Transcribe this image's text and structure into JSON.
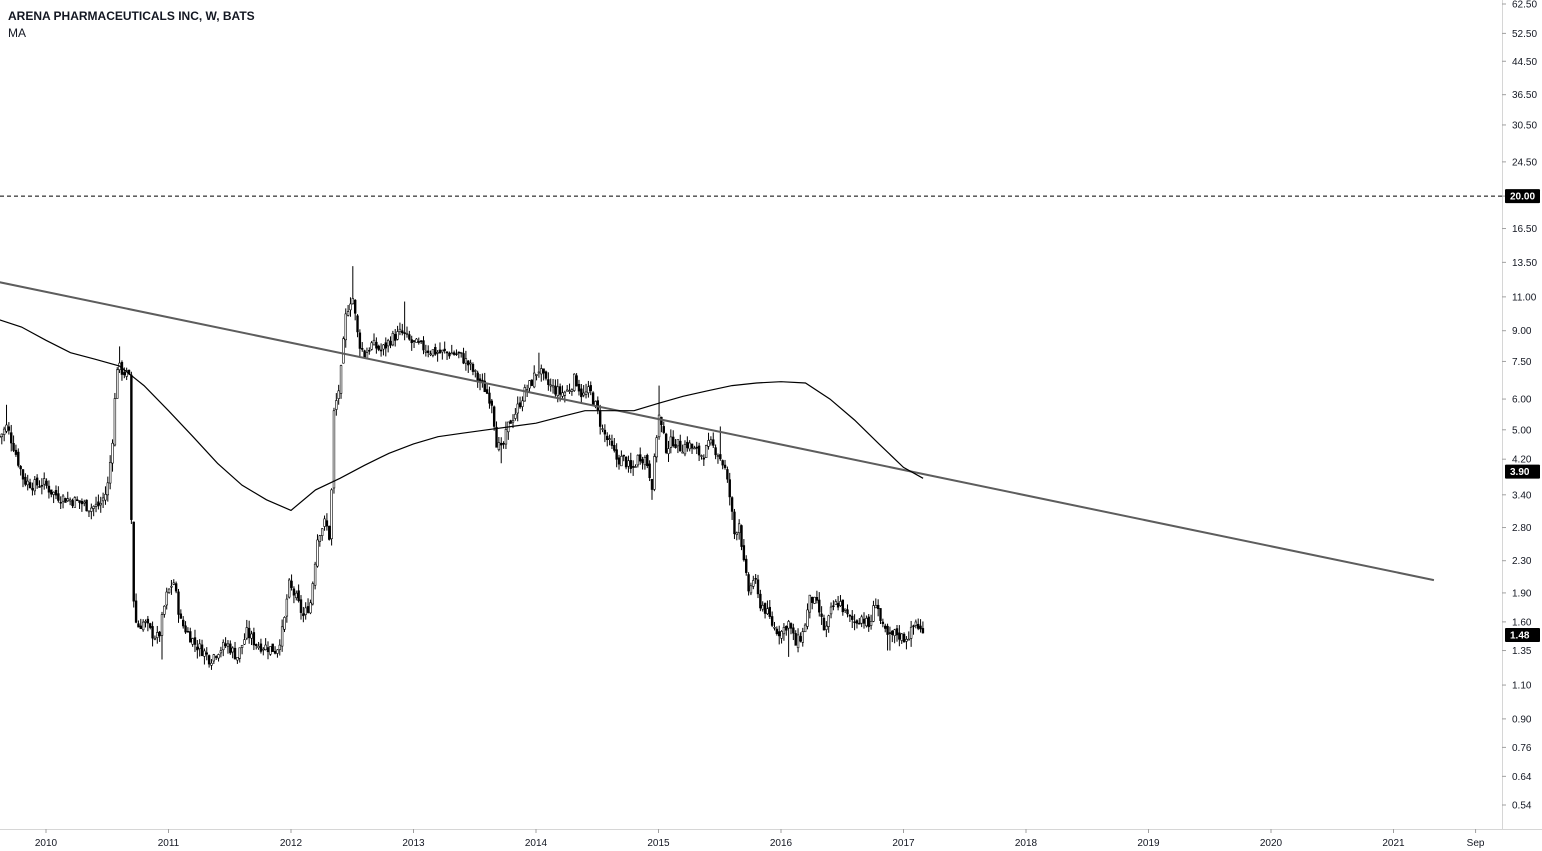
{
  "legend": {
    "symbol_line": "ARENA PHARMACEUTICALS INC, W, BATS",
    "indicator": "MA"
  },
  "colors": {
    "candles": "#000000",
    "ma": "#000000",
    "trendline": "#5d5d5d",
    "axis_text": "#131722",
    "badge_bg": "#000000",
    "badge_text": "#ffffff"
  },
  "chart_data": {
    "type": "candlestick",
    "scale": "log",
    "y_ticks": [
      "0.54",
      "0.64",
      "0.76",
      "0.90",
      "1.10",
      "1.35",
      "1.60",
      "1.90",
      "2.30",
      "2.80",
      "3.40",
      "4.20",
      "5.00",
      "6.00",
      "7.50",
      "9.00",
      "11.00",
      "13.50",
      "16.50",
      "20.00",
      "24.50",
      "30.50",
      "36.50",
      "44.50",
      "52.50",
      "62.50"
    ],
    "y_range": [
      0.47,
      62.5
    ],
    "x_ticks": [
      "2010",
      "2011",
      "2012",
      "2013",
      "2014",
      "2015",
      "2016",
      "2017",
      "2018",
      "2019",
      "2020",
      "2021",
      "Sep"
    ],
    "x_tick_dates": [
      2010.0,
      2011.0,
      2012.0,
      2013.0,
      2014.0,
      2015.0,
      2016.0,
      2017.0,
      2018.0,
      2019.0,
      2020.0,
      2021.0,
      2021.67
    ],
    "x_range": [
      2009.62,
      2021.92
    ],
    "horizontal_line": {
      "value": 20.0,
      "label": "20.00",
      "style": "dashed"
    },
    "price_badges": [
      {
        "value": 3.9,
        "label": "3.90"
      },
      {
        "value": 1.48,
        "label": "1.48"
      }
    ],
    "trendline": {
      "start": [
        2009.62,
        12.0
      ],
      "end": [
        2021.33,
        2.05
      ]
    },
    "ma_points": [
      [
        2009.62,
        9.6
      ],
      [
        2009.8,
        9.2
      ],
      [
        2010.0,
        8.5
      ],
      [
        2010.2,
        7.9
      ],
      [
        2010.4,
        7.6
      ],
      [
        2010.6,
        7.3
      ],
      [
        2010.8,
        6.5
      ],
      [
        2011.0,
        5.6
      ],
      [
        2011.2,
        4.8
      ],
      [
        2011.4,
        4.1
      ],
      [
        2011.6,
        3.6
      ],
      [
        2011.8,
        3.3
      ],
      [
        2012.0,
        3.1
      ],
      [
        2012.2,
        3.5
      ],
      [
        2012.4,
        3.75
      ],
      [
        2012.6,
        4.05
      ],
      [
        2012.8,
        4.35
      ],
      [
        2013.0,
        4.6
      ],
      [
        2013.2,
        4.8
      ],
      [
        2013.4,
        4.9
      ],
      [
        2013.6,
        5.0
      ],
      [
        2013.8,
        5.1
      ],
      [
        2014.0,
        5.2
      ],
      [
        2014.2,
        5.4
      ],
      [
        2014.4,
        5.6
      ],
      [
        2014.6,
        5.6
      ],
      [
        2014.8,
        5.6
      ],
      [
        2015.0,
        5.85
      ],
      [
        2015.2,
        6.1
      ],
      [
        2015.4,
        6.3
      ],
      [
        2015.6,
        6.5
      ],
      [
        2015.8,
        6.6
      ],
      [
        2016.0,
        6.65
      ],
      [
        2016.2,
        6.6
      ],
      [
        2016.4,
        6.0
      ],
      [
        2016.6,
        5.3
      ],
      [
        2016.8,
        4.6
      ],
      [
        2017.0,
        4.0
      ],
      [
        2017.16,
        3.75
      ]
    ],
    "close_path": [
      [
        2009.62,
        4.8
      ],
      [
        2009.68,
        5.1
      ],
      [
        2009.74,
        4.5
      ],
      [
        2009.82,
        3.7
      ],
      [
        2009.9,
        3.6
      ],
      [
        2009.98,
        3.65
      ],
      [
        2010.05,
        3.45
      ],
      [
        2010.12,
        3.35
      ],
      [
        2010.2,
        3.3
      ],
      [
        2010.28,
        3.25
      ],
      [
        2010.36,
        3.15
      ],
      [
        2010.44,
        3.2
      ],
      [
        2010.5,
        3.5
      ],
      [
        2010.54,
        4.6
      ],
      [
        2010.58,
        7.3
      ],
      [
        2010.62,
        7.1
      ],
      [
        2010.67,
        6.9
      ],
      [
        2010.69,
        6.6
      ],
      [
        2010.7,
        2.05
      ],
      [
        2010.74,
        1.55
      ],
      [
        2010.8,
        1.6
      ],
      [
        2010.86,
        1.5
      ],
      [
        2010.92,
        1.45
      ],
      [
        2010.98,
        1.85
      ],
      [
        2011.04,
        2.05
      ],
      [
        2011.1,
        1.6
      ],
      [
        2011.16,
        1.5
      ],
      [
        2011.22,
        1.4
      ],
      [
        2011.28,
        1.35
      ],
      [
        2011.34,
        1.28
      ],
      [
        2011.4,
        1.35
      ],
      [
        2011.48,
        1.4
      ],
      [
        2011.56,
        1.3
      ],
      [
        2011.64,
        1.5
      ],
      [
        2011.72,
        1.4
      ],
      [
        2011.8,
        1.38
      ],
      [
        2011.88,
        1.35
      ],
      [
        2011.94,
        1.55
      ],
      [
        2011.98,
        2.0
      ],
      [
        2012.04,
        1.85
      ],
      [
        2012.1,
        1.65
      ],
      [
        2012.16,
        1.8
      ],
      [
        2012.22,
        2.7
      ],
      [
        2012.28,
        2.9
      ],
      [
        2012.32,
        2.6
      ],
      [
        2012.35,
        5.5
      ],
      [
        2012.4,
        6.6
      ],
      [
        2012.45,
        10.0
      ],
      [
        2012.5,
        11.2
      ],
      [
        2012.55,
        8.5
      ],
      [
        2012.6,
        7.8
      ],
      [
        2012.66,
        8.3
      ],
      [
        2012.74,
        8.0
      ],
      [
        2012.82,
        8.6
      ],
      [
        2012.9,
        8.9
      ],
      [
        2012.98,
        8.4
      ],
      [
        2013.06,
        8.2
      ],
      [
        2013.14,
        8.0
      ],
      [
        2013.22,
        7.9
      ],
      [
        2013.3,
        7.9
      ],
      [
        2013.38,
        7.8
      ],
      [
        2013.46,
        7.3
      ],
      [
        2013.52,
        6.8
      ],
      [
        2013.58,
        6.4
      ],
      [
        2013.64,
        5.9
      ],
      [
        2013.68,
        4.6
      ],
      [
        2013.72,
        4.4
      ],
      [
        2013.78,
        5.2
      ],
      [
        2013.84,
        5.6
      ],
      [
        2013.9,
        6.2
      ],
      [
        2013.96,
        6.6
      ],
      [
        2014.02,
        7.2
      ],
      [
        2014.08,
        6.6
      ],
      [
        2014.14,
        6.4
      ],
      [
        2014.2,
        6.2
      ],
      [
        2014.26,
        6.3
      ],
      [
        2014.32,
        6.8
      ],
      [
        2014.38,
        6.1
      ],
      [
        2014.44,
        6.3
      ],
      [
        2014.5,
        5.6
      ],
      [
        2014.54,
        5.0
      ],
      [
        2014.6,
        4.6
      ],
      [
        2014.66,
        4.2
      ],
      [
        2014.72,
        4.2
      ],
      [
        2014.78,
        3.9
      ],
      [
        2014.84,
        4.3
      ],
      [
        2014.9,
        4.2
      ],
      [
        2014.95,
        3.6
      ],
      [
        2015.0,
        5.5
      ],
      [
        2015.06,
        4.5
      ],
      [
        2015.12,
        4.7
      ],
      [
        2015.18,
        4.5
      ],
      [
        2015.24,
        4.6
      ],
      [
        2015.3,
        4.4
      ],
      [
        2015.36,
        4.3
      ],
      [
        2015.42,
        4.6
      ],
      [
        2015.48,
        4.4
      ],
      [
        2015.54,
        4.0
      ],
      [
        2015.58,
        3.4
      ],
      [
        2015.62,
        2.7
      ],
      [
        2015.66,
        2.9
      ],
      [
        2015.7,
        2.2
      ],
      [
        2015.74,
        1.9
      ],
      [
        2015.78,
        2.1
      ],
      [
        2015.82,
        1.8
      ],
      [
        2015.86,
        1.75
      ],
      [
        2015.9,
        1.65
      ],
      [
        2015.94,
        1.55
      ],
      [
        2016.0,
        1.5
      ],
      [
        2016.06,
        1.6
      ],
      [
        2016.12,
        1.4
      ],
      [
        2016.18,
        1.5
      ],
      [
        2016.24,
        1.85
      ],
      [
        2016.3,
        1.75
      ],
      [
        2016.36,
        1.5
      ],
      [
        2016.42,
        1.75
      ],
      [
        2016.48,
        1.8
      ],
      [
        2016.54,
        1.65
      ],
      [
        2016.6,
        1.6
      ],
      [
        2016.66,
        1.65
      ],
      [
        2016.72,
        1.55
      ],
      [
        2016.78,
        1.85
      ],
      [
        2016.82,
        1.55
      ],
      [
        2016.88,
        1.45
      ],
      [
        2016.94,
        1.5
      ],
      [
        2017.0,
        1.45
      ],
      [
        2017.06,
        1.5
      ],
      [
        2017.1,
        1.6
      ],
      [
        2017.16,
        1.48
      ]
    ],
    "extremes": [
      [
        2009.68,
        5.8
      ],
      [
        2010.6,
        8.2
      ],
      [
        2010.95,
        1.28
      ],
      [
        2011.34,
        1.22
      ],
      [
        2012.5,
        13.2
      ],
      [
        2012.93,
        10.7
      ],
      [
        2013.72,
        4.1
      ],
      [
        2014.02,
        7.9
      ],
      [
        2014.95,
        3.3
      ],
      [
        2015.0,
        6.5
      ],
      [
        2015.5,
        5.1
      ],
      [
        2016.06,
        1.3
      ],
      [
        2016.88,
        1.35
      ]
    ]
  }
}
